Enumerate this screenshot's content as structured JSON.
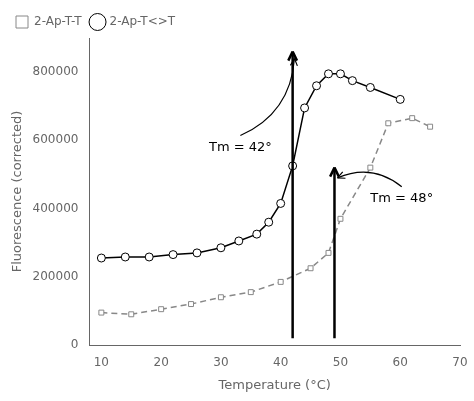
{
  "chart_data": {
    "type": "line",
    "x_label": "Temperature (°C)",
    "y_label": "Fluorescence (corrected)",
    "series": [
      {
        "name": "2-Ap-T-T",
        "color": "#888888",
        "marker": "square",
        "line_style": "dashed",
        "x": [
          10,
          15,
          20,
          25,
          30,
          35,
          40,
          45,
          48,
          50,
          55,
          58,
          62,
          65
        ],
        "values": [
          95000,
          90000,
          105000,
          120000,
          140000,
          155000,
          185000,
          225000,
          270000,
          370000,
          520000,
          650000,
          665000,
          640000
        ]
      },
      {
        "name": "2-Ap-T<>T",
        "color": "#000000",
        "marker": "circle",
        "line_style": "solid",
        "x": [
          10,
          14,
          18,
          22,
          26,
          30,
          33,
          36,
          38,
          40,
          42,
          44,
          46,
          48,
          50,
          52,
          55,
          60
        ],
        "values": [
          255000,
          258000,
          258000,
          265000,
          270000,
          285000,
          305000,
          325000,
          360000,
          415000,
          525000,
          695000,
          760000,
          795000,
          795000,
          775000,
          755000,
          720000
        ]
      }
    ],
    "xlim": [
      8,
      70
    ],
    "ylim": [
      0,
      900000
    ],
    "xticks": [
      10,
      20,
      30,
      40,
      50,
      60,
      70
    ],
    "yticks": [
      0,
      200000,
      400000,
      600000,
      800000
    ],
    "grid": false,
    "legend": "upper left",
    "annotations": [
      {
        "type": "arrow",
        "x": 42,
        "y_from": 20000,
        "y_to": 860000
      },
      {
        "type": "arrow",
        "x": 49,
        "y_from": 20000,
        "y_to": 520000
      },
      {
        "type": "text",
        "text": "Tm = 42°",
        "x": 28,
        "y": 570000,
        "point_x": 42.3,
        "point_y": 840000
      },
      {
        "type": "text",
        "text": "Tm = 48°",
        "x": 55,
        "y": 420000,
        "point_x": 49.5,
        "point_y": 490000
      }
    ]
  }
}
